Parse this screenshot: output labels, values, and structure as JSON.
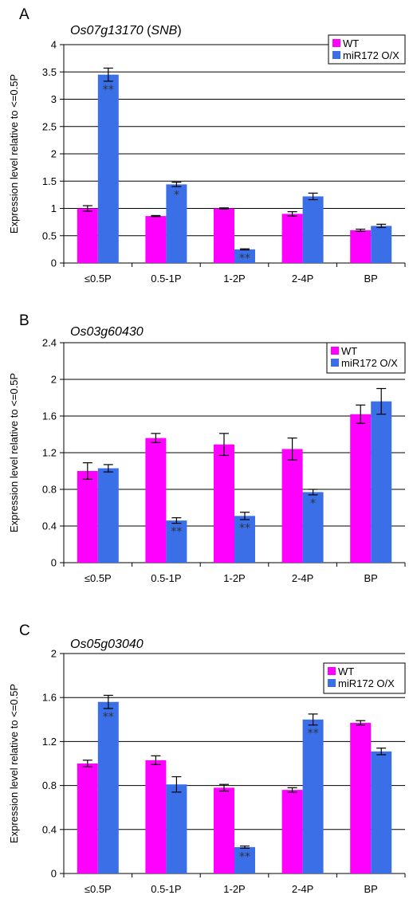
{
  "chart_data": [
    {
      "type": "bar",
      "panel_label": "A",
      "title": "Os07g13170",
      "title_suffix": "SNB",
      "ylabel": "Expression level relative to <=0.5P",
      "xlabel": "",
      "categories": [
        "≤0.5P",
        "0.5-1P",
        "1-2P",
        "2-4P",
        "BP"
      ],
      "ylim": [
        0,
        4
      ],
      "yticks": [
        0,
        0.5,
        1,
        1.5,
        2,
        2.5,
        3,
        3.5,
        4
      ],
      "ytick_labels": [
        "0",
        "0.5",
        "1",
        "1.5",
        "2",
        "2.5",
        "3",
        "3.5",
        "4"
      ],
      "grid": true,
      "legend_position": "top-right",
      "series": [
        {
          "name": "WT",
          "color": "#ff00ff",
          "values": [
            1.0,
            0.86,
            1.0,
            0.9,
            0.6
          ],
          "errors": [
            0.05,
            0.01,
            0.01,
            0.04,
            0.02
          ],
          "significance": [
            "",
            "",
            "",
            "",
            ""
          ]
        },
        {
          "name": "miR172 O/X",
          "color": "#3a6fe8",
          "values": [
            3.45,
            1.44,
            0.25,
            1.22,
            0.68
          ],
          "errors": [
            0.12,
            0.04,
            0.01,
            0.06,
            0.03
          ],
          "significance": [
            "**",
            "*",
            "**",
            "",
            ""
          ]
        }
      ]
    },
    {
      "type": "bar",
      "panel_label": "B",
      "title": "Os03g60430",
      "title_suffix": "",
      "ylabel": "Expression level relative to <=0.5P",
      "xlabel": "",
      "categories": [
        "≤0.5P",
        "0.5-1P",
        "1-2P",
        "2-4P",
        "BP"
      ],
      "ylim": [
        0,
        2.4
      ],
      "yticks": [
        0,
        0.4,
        0.8,
        1.2,
        1.6,
        2,
        2.4
      ],
      "ytick_labels": [
        "0",
        "0.4",
        "0.8",
        "1.2",
        "1.6",
        "2",
        "2.4"
      ],
      "grid": true,
      "legend_position": "top-right",
      "series": [
        {
          "name": "WT",
          "color": "#ff00ff",
          "values": [
            1.0,
            1.36,
            1.29,
            1.24,
            1.62
          ],
          "errors": [
            0.09,
            0.05,
            0.12,
            0.12,
            0.1
          ],
          "significance": [
            "",
            "",
            "",
            "",
            ""
          ]
        },
        {
          "name": "miR172 O/X",
          "color": "#3a6fe8",
          "values": [
            1.03,
            0.46,
            0.51,
            0.77,
            1.76
          ],
          "errors": [
            0.04,
            0.03,
            0.04,
            0.03,
            0.14
          ],
          "significance": [
            "",
            "**",
            "**",
            "*",
            ""
          ]
        }
      ]
    },
    {
      "type": "bar",
      "panel_label": "C",
      "title": "Os05g03040",
      "title_suffix": "",
      "ylabel": "Expression level relative to <=0.5P",
      "xlabel": "",
      "categories": [
        "≤0.5P",
        "0.5-1P",
        "1-2P",
        "2-4P",
        "BP"
      ],
      "ylim": [
        0,
        2
      ],
      "yticks": [
        0,
        0.4,
        0.8,
        1.2,
        1.6,
        2
      ],
      "ytick_labels": [
        "0",
        "0.4",
        "0.8",
        "1.2",
        "1.6",
        "2"
      ],
      "grid": true,
      "legend_position": "top-right",
      "series": [
        {
          "name": "WT",
          "color": "#ff00ff",
          "values": [
            1.0,
            1.03,
            0.78,
            0.76,
            1.37
          ],
          "errors": [
            0.03,
            0.04,
            0.03,
            0.02,
            0.02
          ],
          "significance": [
            "",
            "",
            "",
            "",
            ""
          ]
        },
        {
          "name": "miR172 O/X",
          "color": "#3a6fe8",
          "values": [
            1.56,
            0.81,
            0.24,
            1.4,
            1.11
          ],
          "errors": [
            0.06,
            0.07,
            0.01,
            0.05,
            0.03
          ],
          "significance": [
            "**",
            "",
            "**",
            "**",
            ""
          ]
        }
      ]
    }
  ]
}
